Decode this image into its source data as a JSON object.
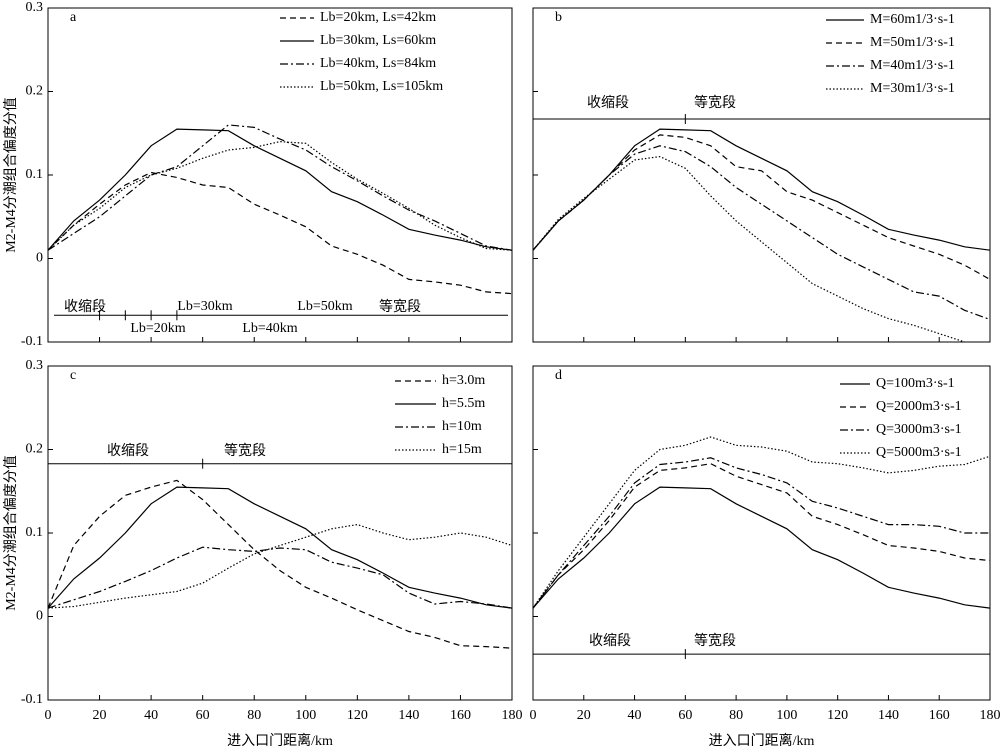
{
  "chart_data": [
    {
      "type": "line",
      "panel": "a",
      "ylabel": "M2-M4分潮组合偏度分值",
      "x": [
        0,
        10,
        20,
        30,
        40,
        50,
        60,
        70,
        80,
        90,
        100,
        110,
        120,
        130,
        140,
        150,
        160,
        170,
        180
      ],
      "xlim": [
        0,
        180
      ],
      "ylim": [
        -0.1,
        0.3
      ],
      "yticks": [
        -0.1,
        0,
        0.1,
        0.2,
        0.3
      ],
      "series": [
        {
          "name": "Lb=20km, Ls=42km",
          "color": "#000",
          "linestyle": "dashed",
          "values": [
            0.01,
            0.04,
            0.065,
            0.088,
            0.103,
            0.097,
            0.088,
            0.085,
            0.065,
            0.052,
            0.038,
            0.015,
            0.005,
            -0.008,
            -0.025,
            -0.028,
            -0.032,
            -0.04,
            -0.042
          ]
        },
        {
          "name": "Lb=30km, Ls=60km",
          "color": "#000",
          "linestyle": "solid",
          "values": [
            0.01,
            0.045,
            0.07,
            0.1,
            0.135,
            0.155,
            0.154,
            0.153,
            0.135,
            0.12,
            0.105,
            0.08,
            0.068,
            0.052,
            0.035,
            0.028,
            0.022,
            0.014,
            0.01
          ]
        },
        {
          "name": "Lb=40km, Ls=84km",
          "color": "#000",
          "linestyle": "dashdot",
          "values": [
            0.01,
            0.03,
            0.05,
            0.075,
            0.1,
            0.11,
            0.135,
            0.16,
            0.157,
            0.143,
            0.13,
            0.11,
            0.093,
            0.075,
            0.058,
            0.045,
            0.03,
            0.015,
            0.01
          ]
        },
        {
          "name": "Lb=50km, Ls=105km",
          "color": "#000",
          "linestyle": "dotted",
          "values": [
            0.01,
            0.04,
            0.06,
            0.085,
            0.1,
            0.108,
            0.12,
            0.13,
            0.133,
            0.14,
            0.138,
            0.115,
            0.095,
            0.078,
            0.06,
            0.04,
            0.025,
            0.012,
            0.01
          ]
        }
      ],
      "annotations": [
        "收缩段",
        "Lb=30km",
        "Lb=50km",
        "等宽段",
        "Lb=20km",
        "Lb=40km"
      ]
    },
    {
      "type": "line",
      "panel": "b",
      "x": [
        0,
        10,
        20,
        30,
        40,
        50,
        60,
        70,
        80,
        90,
        100,
        110,
        120,
        130,
        140,
        150,
        160,
        170,
        180
      ],
      "xlim": [
        0,
        180
      ],
      "ylim": [
        -0.1,
        0.3
      ],
      "series": [
        {
          "name": "M=60m1/3·s-1",
          "color": "#000",
          "linestyle": "solid",
          "values": [
            0.01,
            0.045,
            0.07,
            0.1,
            0.135,
            0.155,
            0.154,
            0.153,
            0.135,
            0.12,
            0.105,
            0.08,
            0.068,
            0.052,
            0.035,
            0.028,
            0.022,
            0.014,
            0.01
          ]
        },
        {
          "name": "M=50m1/3·s-1",
          "color": "#000",
          "linestyle": "dashed",
          "values": [
            0.01,
            0.045,
            0.07,
            0.1,
            0.13,
            0.148,
            0.145,
            0.135,
            0.11,
            0.105,
            0.08,
            0.07,
            0.055,
            0.04,
            0.025,
            0.015,
            0.005,
            -0.008,
            -0.025
          ]
        },
        {
          "name": "M=40m1/3·s-1",
          "color": "#000",
          "linestyle": "dashdot",
          "values": [
            0.01,
            0.045,
            0.07,
            0.1,
            0.125,
            0.135,
            0.128,
            0.11,
            0.085,
            0.065,
            0.045,
            0.025,
            0.005,
            -0.01,
            -0.025,
            -0.04,
            -0.045,
            -0.062,
            -0.073
          ]
        },
        {
          "name": "M=30m1/3·s-1",
          "color": "#000",
          "linestyle": "dotted",
          "values": [
            0.01,
            0.047,
            0.072,
            0.095,
            0.118,
            0.122,
            0.108,
            0.075,
            0.045,
            0.02,
            -0.005,
            -0.03,
            -0.045,
            -0.06,
            -0.072,
            -0.08,
            -0.09,
            -0.1,
            null
          ]
        }
      ],
      "annotations": [
        "收缩段",
        "等宽段"
      ]
    },
    {
      "type": "line",
      "panel": "c",
      "ylabel": "M2-M4分潮组合偏度分值",
      "xlabel": "进入口门距离/km",
      "x": [
        0,
        10,
        20,
        30,
        40,
        50,
        60,
        70,
        80,
        90,
        100,
        110,
        120,
        130,
        140,
        150,
        160,
        170,
        180
      ],
      "xlim": [
        0,
        180
      ],
      "xticks": [
        0,
        20,
        40,
        60,
        80,
        100,
        120,
        140,
        160,
        180
      ],
      "ylim": [
        -0.1,
        0.3
      ],
      "yticks": [
        -0.1,
        0,
        0.1,
        0.2,
        0.3
      ],
      "series": [
        {
          "name": "h=3.0m",
          "color": "#000",
          "linestyle": "dashed",
          "values": [
            0.01,
            0.085,
            0.12,
            0.145,
            0.155,
            0.163,
            0.14,
            0.11,
            0.08,
            0.055,
            0.035,
            0.022,
            0.008,
            -0.005,
            -0.018,
            -0.025,
            -0.035,
            -0.036,
            -0.038
          ]
        },
        {
          "name": "h=5.5m",
          "color": "#000",
          "linestyle": "solid",
          "values": [
            0.01,
            0.045,
            0.07,
            0.1,
            0.135,
            0.155,
            0.154,
            0.153,
            0.135,
            0.12,
            0.105,
            0.08,
            0.068,
            0.052,
            0.035,
            0.028,
            0.022,
            0.014,
            0.01
          ]
        },
        {
          "name": "h=10m",
          "color": "#000",
          "linestyle": "dashdot",
          "values": [
            0.01,
            0.02,
            0.03,
            0.042,
            0.055,
            0.07,
            0.083,
            0.08,
            0.078,
            0.082,
            0.08,
            0.065,
            0.058,
            0.05,
            0.028,
            0.015,
            0.018,
            0.015,
            0.01
          ]
        },
        {
          "name": "h=15m",
          "color": "#000",
          "linestyle": "dotted",
          "values": [
            0.01,
            0.012,
            0.017,
            0.022,
            0.026,
            0.03,
            0.04,
            0.058,
            0.075,
            0.085,
            0.095,
            0.105,
            0.11,
            0.1,
            0.092,
            0.095,
            0.1,
            0.095,
            0.085
          ]
        }
      ],
      "annotations": [
        "收缩段",
        "等宽段"
      ]
    },
    {
      "type": "line",
      "panel": "d",
      "xlabel": "进入口门距离/km",
      "x": [
        0,
        10,
        20,
        30,
        40,
        50,
        60,
        70,
        80,
        90,
        100,
        110,
        120,
        130,
        140,
        150,
        160,
        170,
        180
      ],
      "xlim": [
        0,
        180
      ],
      "xticks": [
        0,
        20,
        40,
        60,
        80,
        100,
        120,
        140,
        160,
        180
      ],
      "ylim": [
        -0.1,
        0.3
      ],
      "series": [
        {
          "name": "Q=100m3·s-1",
          "color": "#000",
          "linestyle": "solid",
          "values": [
            0.01,
            0.045,
            0.07,
            0.1,
            0.135,
            0.155,
            0.154,
            0.153,
            0.135,
            0.12,
            0.105,
            0.08,
            0.068,
            0.052,
            0.035,
            0.028,
            0.022,
            0.014,
            0.01
          ]
        },
        {
          "name": "Q=2000m3·s-1",
          "color": "#000",
          "linestyle": "dashed",
          "values": [
            0.01,
            0.05,
            0.08,
            0.115,
            0.155,
            0.175,
            0.178,
            0.183,
            0.168,
            0.158,
            0.148,
            0.12,
            0.11,
            0.098,
            0.085,
            0.082,
            0.078,
            0.07,
            0.067
          ]
        },
        {
          "name": "Q=3000m3·s-1",
          "color": "#000",
          "linestyle": "dashdot",
          "values": [
            0.01,
            0.05,
            0.085,
            0.12,
            0.16,
            0.182,
            0.185,
            0.19,
            0.178,
            0.17,
            0.16,
            0.138,
            0.13,
            0.12,
            0.11,
            0.11,
            0.108,
            0.1,
            0.1
          ]
        },
        {
          "name": "Q=5000m3·s-1",
          "color": "#000",
          "linestyle": "dotted",
          "values": [
            0.01,
            0.055,
            0.095,
            0.135,
            0.175,
            0.2,
            0.205,
            0.215,
            0.205,
            0.203,
            0.198,
            0.185,
            0.183,
            0.178,
            0.172,
            0.175,
            0.18,
            0.182,
            0.192
          ]
        }
      ],
      "annotations": [
        "收缩段",
        "等宽段"
      ]
    }
  ]
}
